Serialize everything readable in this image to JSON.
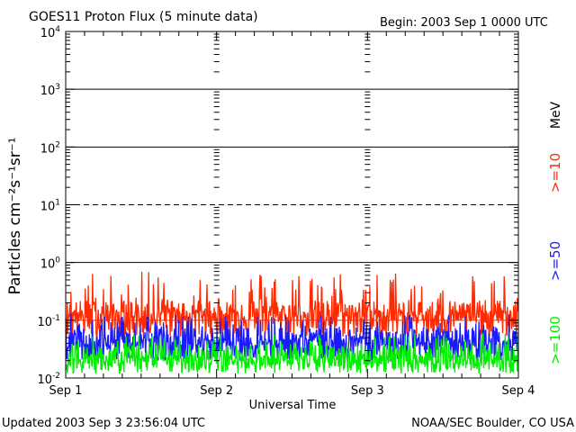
{
  "header": {
    "title": "GOES11 Proton Flux (5 minute data)",
    "begin": "Begin: 2003 Sep 1 0000 UTC"
  },
  "footer": {
    "updated": "Updated 2003 Sep  3 23:56:04 UTC",
    "source": "NOAA/SEC Boulder, CO USA"
  },
  "legend": {
    "unit": "MeV",
    "entries": [
      {
        "label": ">=10",
        "color": "#ff2a00"
      },
      {
        "label": ">=50",
        "color": "#1a1aff"
      },
      {
        "label": ">=100",
        "color": "#00ee00"
      }
    ]
  },
  "chart_data": {
    "type": "line",
    "title": "GOES11 Proton Flux (5 minute data)",
    "xlabel": "Universal Time",
    "ylabel": "Particles cm⁻²s⁻¹sr⁻¹",
    "yscale": "log",
    "ylim": [
      0.01,
      10000
    ],
    "xlim": [
      0,
      3
    ],
    "x_ticks": [
      "Sep 1",
      "Sep 2",
      "Sep 3",
      "Sep 4"
    ],
    "y_ticks": [
      {
        "value": 0.01,
        "base": "10",
        "exp": "-2"
      },
      {
        "value": 0.1,
        "base": "10",
        "exp": "-1"
      },
      {
        "value": 1,
        "base": "10",
        "exp": "0"
      },
      {
        "value": 10,
        "base": "10",
        "exp": "1"
      },
      {
        "value": 100,
        "base": "10",
        "exp": "2"
      },
      {
        "value": 1000,
        "base": "10",
        "exp": "3"
      },
      {
        "value": 10000,
        "base": "10",
        "exp": "4"
      }
    ],
    "gridlines": [
      {
        "value": 1,
        "style": "solid"
      },
      {
        "value": 10,
        "style": "dashed"
      },
      {
        "value": 100,
        "style": "solid"
      },
      {
        "value": 1000,
        "style": "solid"
      }
    ],
    "threshold_lines": [
      {
        "value": 0.1,
        "color": "#ff2a00"
      }
    ],
    "series": [
      {
        "name": ">=10",
        "color": "#ff2a00",
        "baseline": 0.15,
        "min": 0.05,
        "max": 0.7
      },
      {
        "name": ">=50",
        "color": "#1a1aff",
        "baseline": 0.05,
        "min": 0.02,
        "max": 0.13
      },
      {
        "name": ">=100",
        "color": "#00ee00",
        "baseline": 0.025,
        "min": 0.012,
        "max": 0.06
      }
    ]
  }
}
